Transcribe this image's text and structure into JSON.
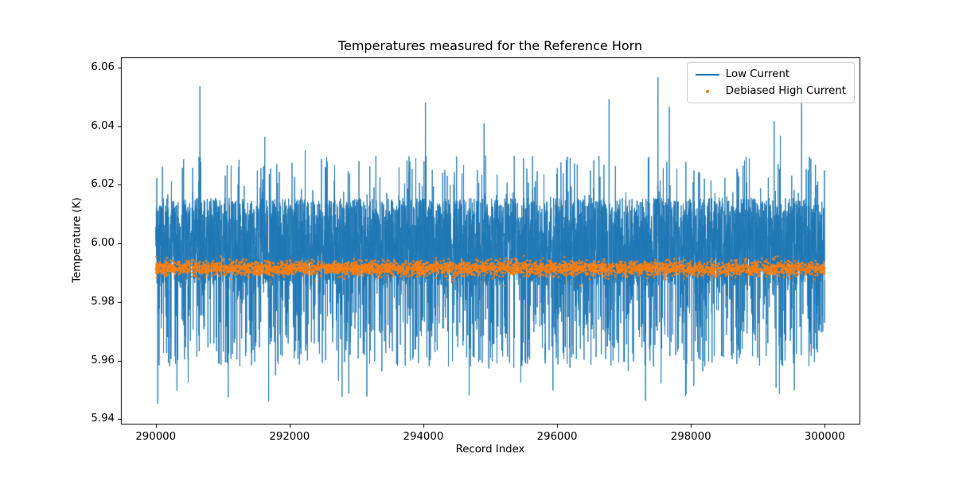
{
  "chart_data": {
    "type": "line",
    "title": "Temperatures measured for the Reference Horn",
    "xlabel": "Record Index",
    "ylabel": "Temperature (K)",
    "xlim": [
      289480,
      300520
    ],
    "ylim": [
      5.9385,
      6.0635
    ],
    "x_ticks": [
      290000,
      292000,
      294000,
      296000,
      298000,
      300000
    ],
    "x_tick_labels": [
      "290000",
      "292000",
      "294000",
      "296000",
      "298000",
      "300000"
    ],
    "y_ticks": [
      5.94,
      5.96,
      5.98,
      6.0,
      6.02,
      6.04,
      6.06
    ],
    "y_tick_labels": [
      "5.94",
      "5.96",
      "5.98",
      "6.00",
      "6.02",
      "6.04",
      "6.06"
    ],
    "grid": false,
    "background": "#ffffff",
    "legend": {
      "position": "upper right"
    },
    "series": [
      {
        "name": "Low Current",
        "color": "#1f77b4",
        "style": "line",
        "synthesis": {
          "n_points": 6000,
          "x_start": 290000,
          "x_end": 300000,
          "core_min": 5.9855,
          "core_max": 6.0155,
          "low_min": 5.958,
          "low_max": 5.9855,
          "p_low": 0.13,
          "p_mid_spike": 0.03,
          "mid_spike_min": 6.0155,
          "mid_spike_max": 6.03,
          "p_high_spike": 0.0025,
          "high_spike_min": 6.03,
          "high_spike_max": 6.058,
          "p_deep_dip": 0.006,
          "deep_dip_min": 5.9445,
          "deep_dip_max": 5.96,
          "seed": 42
        }
      },
      {
        "name": "Debiased High Current",
        "color": "#ff7f0e",
        "style": "scatter",
        "marker_radius": 1.3,
        "synthesis": {
          "n_points": 4000,
          "x_start": 290000,
          "x_end": 300000,
          "mean": 5.9915,
          "std": 0.0012,
          "clip_min": 5.9868,
          "clip_max": 5.996,
          "outlier_prob": 0.001,
          "outlier_min": 5.984,
          "outlier_max": 5.987,
          "seed": 7
        }
      }
    ]
  }
}
